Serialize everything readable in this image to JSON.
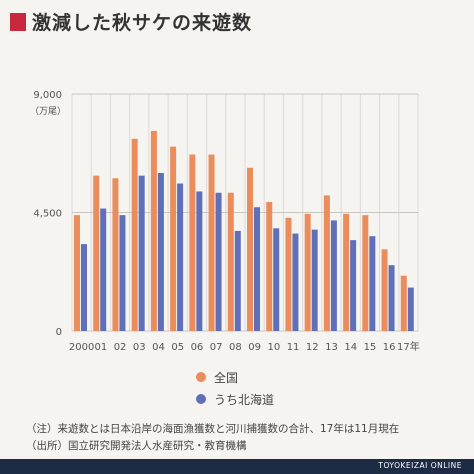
{
  "title": "激減した秋サケの来遊数",
  "colors": {
    "accent": "#c8283c",
    "zenkoku": "#ea8c5c",
    "hokkaido": "#5f70b8",
    "footer": "#1e2b44"
  },
  "chart_data": {
    "type": "bar",
    "categories": [
      "2000",
      "01",
      "02",
      "03",
      "04",
      "05",
      "06",
      "07",
      "08",
      "09",
      "10",
      "11",
      "12",
      "13",
      "14",
      "15",
      "16",
      "17年"
    ],
    "series": [
      {
        "name": "全国",
        "values": [
          4400,
          5900,
          5800,
          7300,
          7600,
          7000,
          6700,
          6700,
          5250,
          6200,
          4900,
          4300,
          4450,
          5150,
          4450,
          4400,
          3100,
          2100
        ]
      },
      {
        "name": "うち北海道",
        "values": [
          3300,
          4650,
          4400,
          5900,
          6000,
          5600,
          5300,
          5250,
          3800,
          4700,
          3900,
          3700,
          3850,
          4200,
          3450,
          3600,
          2500,
          1650
        ]
      }
    ],
    "ytick_labels": [
      "0",
      "4,500",
      "9,000"
    ],
    "yunit": "（万尾）",
    "ylim": [
      0,
      9000
    ],
    "grid": true,
    "legend": "bottom"
  },
  "legend": {
    "zenkoku": "全国",
    "hokkaido": "うち北海道"
  },
  "notes": {
    "line1": "（注）来遊数とは日本沿岸の海面漁獲数と河川捕獲数の合計、17年は11月現在",
    "line2": "（出所）国立研究開発法人水産研究・教育機構"
  },
  "footer": "TOYOKEIZAI ONLINE"
}
